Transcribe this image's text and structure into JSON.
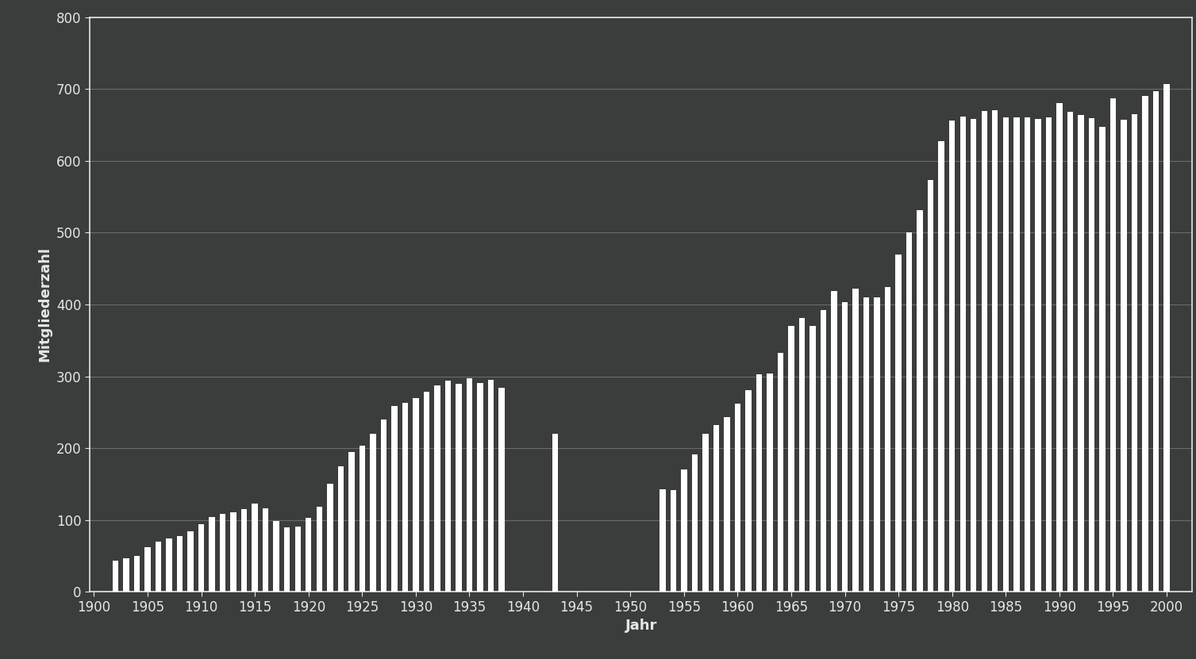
{
  "chart_data": {
    "type": "bar",
    "x_label": "Jahr",
    "y_label": "Mitgliederzahl",
    "x": [
      1902,
      1903,
      1904,
      1905,
      1906,
      1907,
      1908,
      1909,
      1910,
      1911,
      1912,
      1913,
      1914,
      1915,
      1916,
      1917,
      1918,
      1919,
      1920,
      1921,
      1922,
      1923,
      1924,
      1925,
      1926,
      1927,
      1928,
      1929,
      1930,
      1931,
      1932,
      1933,
      1934,
      1935,
      1936,
      1937,
      1938,
      1943,
      1953,
      1954,
      1955,
      1956,
      1957,
      1958,
      1959,
      1960,
      1961,
      1962,
      1963,
      1964,
      1965,
      1966,
      1967,
      1968,
      1969,
      1970,
      1971,
      1972,
      1973,
      1974,
      1975,
      1976,
      1977,
      1978,
      1979,
      1980,
      1981,
      1982,
      1983,
      1984,
      1985,
      1986,
      1987,
      1988,
      1989,
      1990,
      1991,
      1992,
      1993,
      1994,
      1995,
      1996,
      1997,
      1998,
      1999,
      2000
    ],
    "values": [
      43,
      47,
      50,
      62,
      70,
      74,
      77,
      84,
      94,
      104,
      109,
      111,
      115,
      123,
      116,
      99,
      90,
      91,
      103,
      118,
      150,
      175,
      195,
      203,
      220,
      240,
      259,
      263,
      270,
      279,
      287,
      294,
      290,
      297,
      291,
      295,
      284,
      220,
      143,
      142,
      170,
      191,
      220,
      232,
      243,
      262,
      281,
      303,
      304,
      333,
      370,
      381,
      370,
      392,
      419,
      403,
      422,
      410,
      410,
      424,
      470,
      500,
      531,
      573,
      627,
      656,
      662,
      658,
      669,
      670,
      661,
      661,
      661,
      658,
      660,
      680,
      668,
      664,
      659,
      647,
      687,
      657,
      665,
      690,
      697,
      707
    ],
    "color": "#ffffff",
    "xlim": [
      1899.6,
      2002.4
    ],
    "xticks": [
      1900,
      1905,
      1910,
      1915,
      1920,
      1925,
      1930,
      1935,
      1940,
      1945,
      1950,
      1955,
      1960,
      1965,
      1970,
      1975,
      1980,
      1985,
      1990,
      1995,
      2000
    ],
    "ylim": [
      0,
      800
    ],
    "yticks": [
      0,
      100,
      200,
      300,
      400,
      500,
      600,
      700,
      800
    ],
    "grid": true
  }
}
